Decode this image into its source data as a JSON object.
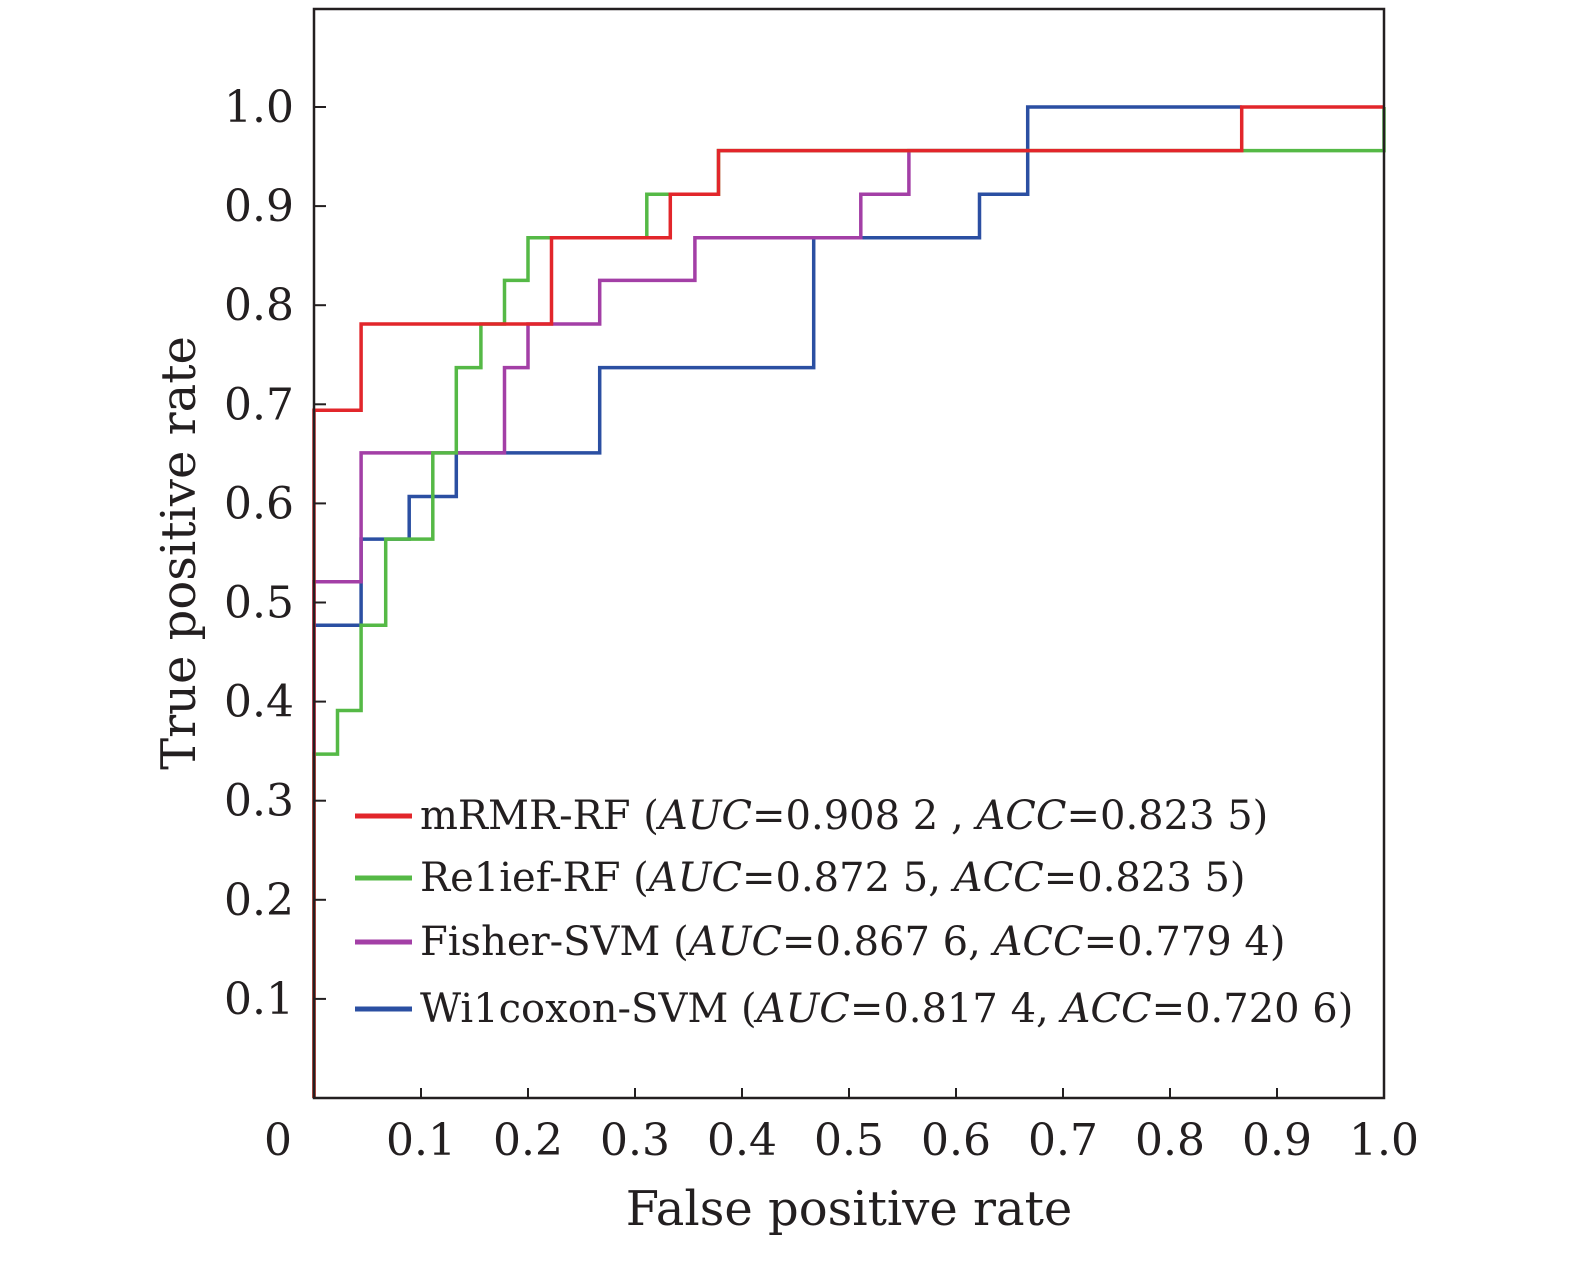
{
  "chart_data": {
    "type": "line",
    "title": "",
    "xlabel": "False positive rate",
    "ylabel": "True positive rate",
    "xlim": [
      0,
      1.0
    ],
    "ylim": [
      0,
      1.1
    ],
    "x_ticks": [
      "0",
      "0.1",
      "0.2",
      "0.3",
      "0.4",
      "0.5",
      "0.6",
      "0.7",
      "0.8",
      "0.9",
      "1.0"
    ],
    "y_ticks": [
      "0.1",
      "0.2",
      "0.3",
      "0.4",
      "0.5",
      "0.6",
      "0.7",
      "0.8",
      "0.9",
      "1.0"
    ],
    "grid": false,
    "legend_position": "bottom-right",
    "series": [
      {
        "name": "mRMR-RF",
        "auc_label": "AUC",
        "auc": "=0.908 2 ,",
        "acc_label": "ACC",
        "acc": "=0.823 5)",
        "color": "#e2262b",
        "points": [
          [
            0,
            0
          ],
          [
            0,
            0.694
          ],
          [
            0.044,
            0.694
          ],
          [
            0.044,
            0.781
          ],
          [
            0.222,
            0.781
          ],
          [
            0.222,
            0.868
          ],
          [
            0.333,
            0.868
          ],
          [
            0.333,
            0.912
          ],
          [
            0.378,
            0.912
          ],
          [
            0.378,
            0.956
          ],
          [
            0.867,
            0.956
          ],
          [
            0.867,
            1.0
          ],
          [
            1.0,
            1.0
          ]
        ]
      },
      {
        "name": "Re1ief-RF",
        "auc_label": "AUC",
        "auc": "=0.872 5,",
        "acc_label": "ACC",
        "acc": "=0.823 5)",
        "color": "#55b946",
        "points": [
          [
            0,
            0
          ],
          [
            0,
            0.347
          ],
          [
            0.022,
            0.347
          ],
          [
            0.022,
            0.391
          ],
          [
            0.044,
            0.391
          ],
          [
            0.044,
            0.477
          ],
          [
            0.067,
            0.477
          ],
          [
            0.067,
            0.564
          ],
          [
            0.111,
            0.564
          ],
          [
            0.111,
            0.651
          ],
          [
            0.133,
            0.651
          ],
          [
            0.133,
            0.737
          ],
          [
            0.156,
            0.737
          ],
          [
            0.156,
            0.781
          ],
          [
            0.178,
            0.781
          ],
          [
            0.178,
            0.825
          ],
          [
            0.2,
            0.825
          ],
          [
            0.2,
            0.868
          ],
          [
            0.311,
            0.868
          ],
          [
            0.311,
            0.912
          ],
          [
            0.378,
            0.912
          ],
          [
            0.378,
            0.956
          ],
          [
            1.0,
            0.956
          ],
          [
            1.0,
            1.0
          ]
        ]
      },
      {
        "name": "Fisher-SVM",
        "auc_label": "AUC",
        "auc": "=0.867 6,",
        "acc_label": "ACC",
        "acc": "=0.779 4)",
        "color": "#a33fa6",
        "points": [
          [
            0,
            0
          ],
          [
            0,
            0.521
          ],
          [
            0.044,
            0.521
          ],
          [
            0.044,
            0.651
          ],
          [
            0.178,
            0.651
          ],
          [
            0.178,
            0.737
          ],
          [
            0.2,
            0.737
          ],
          [
            0.2,
            0.781
          ],
          [
            0.267,
            0.781
          ],
          [
            0.267,
            0.825
          ],
          [
            0.356,
            0.825
          ],
          [
            0.356,
            0.868
          ],
          [
            0.511,
            0.868
          ],
          [
            0.511,
            0.912
          ],
          [
            0.556,
            0.912
          ],
          [
            0.556,
            0.956
          ],
          [
            0.667,
            0.956
          ]
        ]
      },
      {
        "name": "Wi1coxon-SVM",
        "auc_label": "AUC",
        "auc": "=0.817 4,",
        "acc_label": "ACC",
        "acc": "=0.720 6)",
        "color": "#2b4fa2",
        "points": [
          [
            0,
            0.477
          ],
          [
            0.044,
            0.477
          ],
          [
            0.044,
            0.564
          ],
          [
            0.089,
            0.564
          ],
          [
            0.089,
            0.607
          ],
          [
            0.133,
            0.607
          ],
          [
            0.133,
            0.651
          ],
          [
            0.267,
            0.651
          ],
          [
            0.267,
            0.737
          ],
          [
            0.467,
            0.737
          ],
          [
            0.467,
            0.868
          ],
          [
            0.622,
            0.868
          ],
          [
            0.622,
            0.912
          ],
          [
            0.667,
            0.912
          ],
          [
            0.667,
            1.0
          ],
          [
            0.867,
            1.0
          ]
        ]
      }
    ]
  }
}
